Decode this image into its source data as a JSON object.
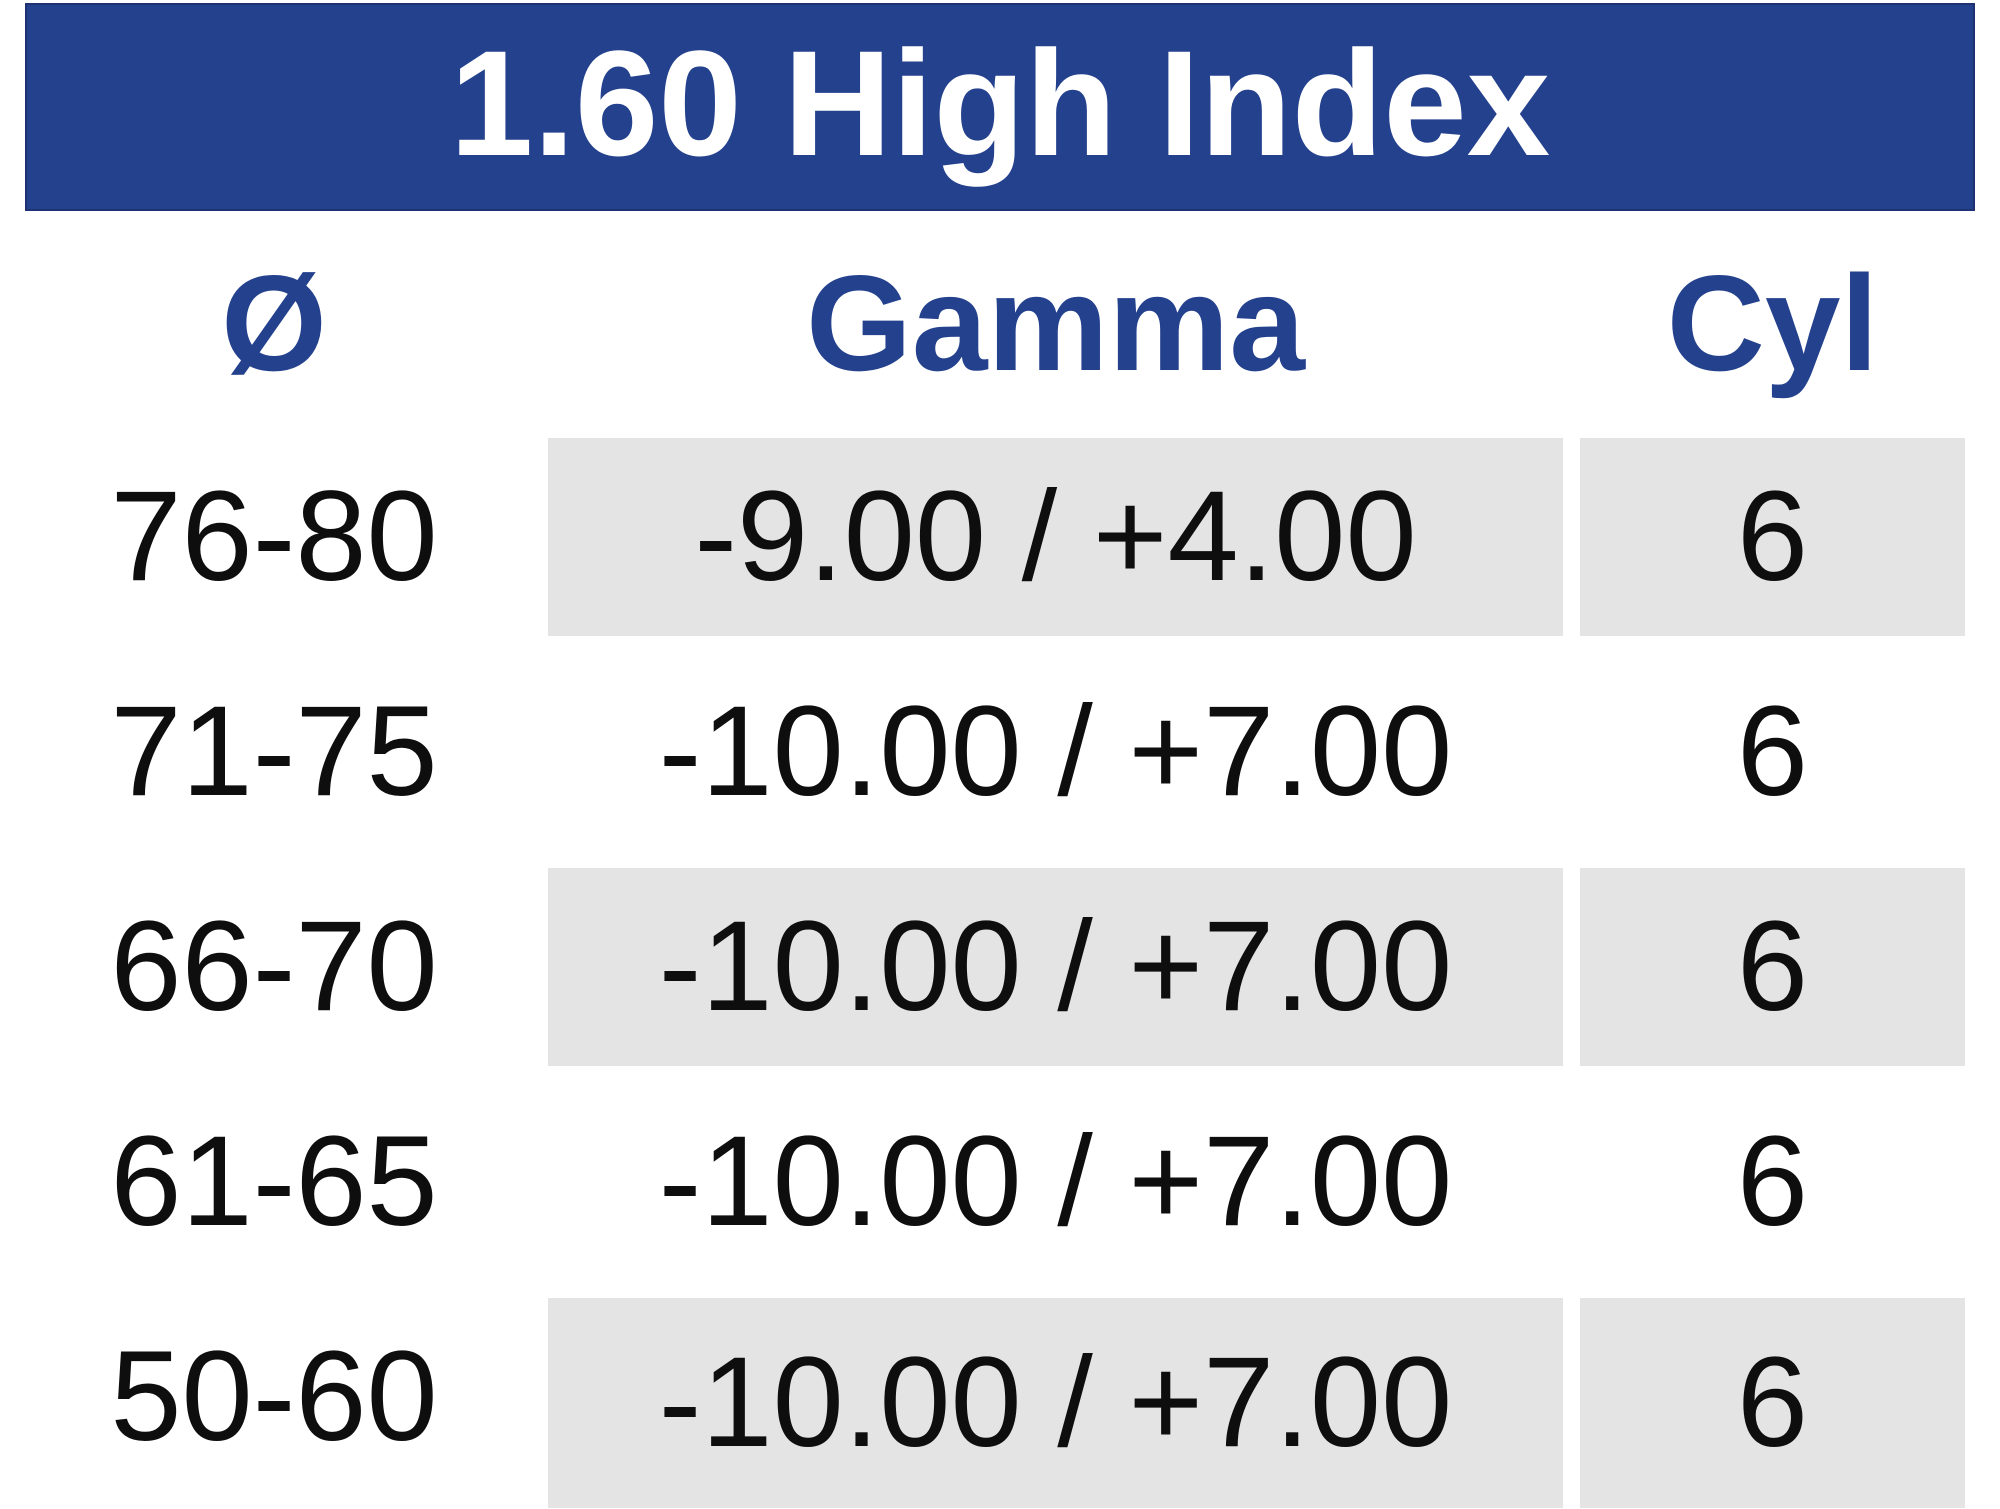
{
  "title": "1.60 High Index",
  "columns": [
    "Ø",
    "Gamma",
    "Cyl"
  ],
  "rows": [
    {
      "diameter": "76-80",
      "gamma": "-9.00 / +4.00",
      "cyl": "6"
    },
    {
      "diameter": "71-75",
      "gamma": "-10.00 / +7.00",
      "cyl": "6"
    },
    {
      "diameter": "66-70",
      "gamma": "-10.00 / +7.00",
      "cyl": "6"
    },
    {
      "diameter": "61-65",
      "gamma": "-10.00 / +7.00",
      "cyl": "6"
    },
    {
      "diameter": "50-60",
      "gamma": "-10.00 / +7.00",
      "cyl": "6"
    }
  ],
  "colors": {
    "banner_blue": "#24418e",
    "header_text_blue": "#24418e",
    "row_shade_gray": "#e4e4e5",
    "banner_text": "#ffffff",
    "body_text": "#0e0e0e"
  },
  "chart_data": {
    "type": "table",
    "title": "1.60 High Index",
    "columns": [
      "Ø",
      "Gamma",
      "Cyl"
    ],
    "rows": [
      [
        "76-80",
        "-9.00 / +4.00",
        "6"
      ],
      [
        "71-75",
        "-10.00 / +7.00",
        "6"
      ],
      [
        "66-70",
        "-10.00 / +7.00",
        "6"
      ],
      [
        "61-65",
        "-10.00 / +7.00",
        "6"
      ],
      [
        "50-60",
        "-10.00 / +7.00",
        "6"
      ]
    ]
  }
}
